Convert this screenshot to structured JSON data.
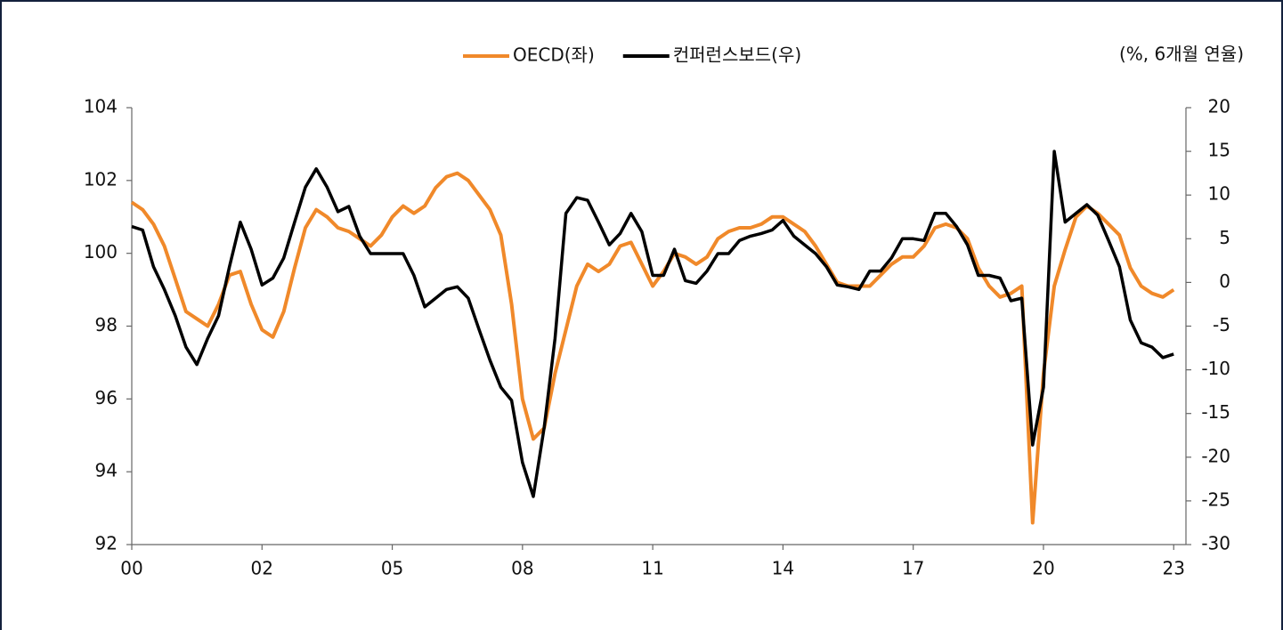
{
  "chart_data": {
    "type": "line",
    "unit_label": "(%, 6개월 연율)",
    "categories": [
      "00",
      null,
      null,
      null,
      null,
      null,
      null,
      null,
      null,
      null,
      null,
      null,
      "02",
      null,
      null,
      null,
      null,
      null,
      null,
      null,
      null,
      null,
      null,
      null,
      "05",
      null,
      null,
      null,
      null,
      null,
      null,
      null,
      null,
      null,
      null,
      null,
      "08",
      null,
      null,
      null,
      null,
      null,
      null,
      null,
      null,
      null,
      null,
      null,
      "11",
      null,
      null,
      null,
      null,
      null,
      null,
      null,
      null,
      null,
      null,
      null,
      "14",
      null,
      null,
      null,
      null,
      null,
      null,
      null,
      null,
      null,
      null,
      null,
      "17",
      null,
      null,
      null,
      null,
      null,
      null,
      null,
      null,
      null,
      null,
      null,
      "20",
      null,
      null,
      null,
      null,
      null,
      null,
      null,
      null,
      null,
      null,
      null,
      "23"
    ],
    "series": [
      {
        "name": "OECD(좌)",
        "color": "#f0892a",
        "axis": "y",
        "values": [
          101.4,
          101.2,
          100.8,
          100.2,
          99.3,
          98.4,
          98.2,
          98.0,
          98.6,
          99.4,
          99.5,
          98.6,
          97.9,
          97.7,
          98.4,
          99.6,
          100.7,
          101.2,
          101.0,
          100.7,
          100.6,
          100.4,
          100.2,
          100.5,
          101.0,
          101.3,
          101.1,
          101.3,
          101.8,
          102.1,
          102.2,
          102.0,
          101.6,
          101.2,
          100.5,
          98.6,
          96.0,
          94.9,
          95.2,
          96.7,
          97.9,
          99.1,
          99.7,
          99.5,
          99.7,
          100.2,
          100.3,
          99.7,
          99.1,
          99.5,
          100.0,
          99.9,
          99.7,
          99.9,
          100.4,
          100.6,
          100.7,
          100.7,
          100.8,
          101.0,
          101.0,
          100.8,
          100.6,
          100.2,
          99.7,
          99.2,
          99.1,
          99.1,
          99.1,
          99.4,
          99.7,
          99.9,
          99.9,
          100.2,
          100.7,
          100.8,
          100.7,
          100.4,
          99.6,
          99.1,
          98.8,
          98.9,
          99.1,
          92.6,
          96.7,
          99.1,
          100.1,
          101.0,
          101.3,
          101.1,
          100.8,
          100.5,
          99.6,
          99.1,
          98.9,
          98.8,
          99.0
        ]
      },
      {
        "name": "컨퍼런스보드(우)",
        "color": "#000000",
        "axis": "y2",
        "values": [
          6.4,
          6.0,
          1.8,
          -0.8,
          -3.8,
          -7.4,
          -9.4,
          -6.4,
          -3.8,
          1.8,
          6.9,
          3.8,
          -0.3,
          0.5,
          2.8,
          6.9,
          10.9,
          13.0,
          10.9,
          8.1,
          8.7,
          5.3,
          3.3,
          3.3,
          3.3,
          3.3,
          0.8,
          -2.8,
          -1.8,
          -0.8,
          -0.5,
          -1.8,
          -5.4,
          -8.9,
          -12.0,
          -13.5,
          -20.6,
          -24.5,
          -16.6,
          -6.4,
          7.9,
          9.7,
          9.4,
          6.9,
          4.3,
          5.6,
          7.9,
          5.8,
          0.8,
          0.8,
          3.8,
          0.2,
          -0.1,
          1.3,
          3.3,
          3.3,
          4.8,
          5.3,
          5.6,
          6.0,
          7.1,
          5.3,
          4.3,
          3.3,
          1.8,
          -0.3,
          -0.5,
          -0.8,
          1.3,
          1.3,
          2.8,
          5.0,
          5.0,
          4.8,
          7.9,
          7.9,
          6.4,
          4.3,
          0.8,
          0.8,
          0.5,
          -2.1,
          -1.8,
          -18.6,
          -12.0,
          15.0,
          6.9,
          7.9,
          8.9,
          7.7,
          4.8,
          1.8,
          -4.3,
          -6.9,
          -7.4,
          -8.6,
          -8.2
        ]
      }
    ],
    "ylim": [
      92,
      104
    ],
    "yticks": [
      92,
      94,
      96,
      98,
      100,
      102,
      104
    ],
    "y2lim": [
      -30,
      20
    ],
    "y2ticks": [
      -30,
      -25,
      -20,
      -15,
      -10,
      -5,
      0,
      5,
      10,
      15,
      20
    ],
    "legend": "top"
  }
}
